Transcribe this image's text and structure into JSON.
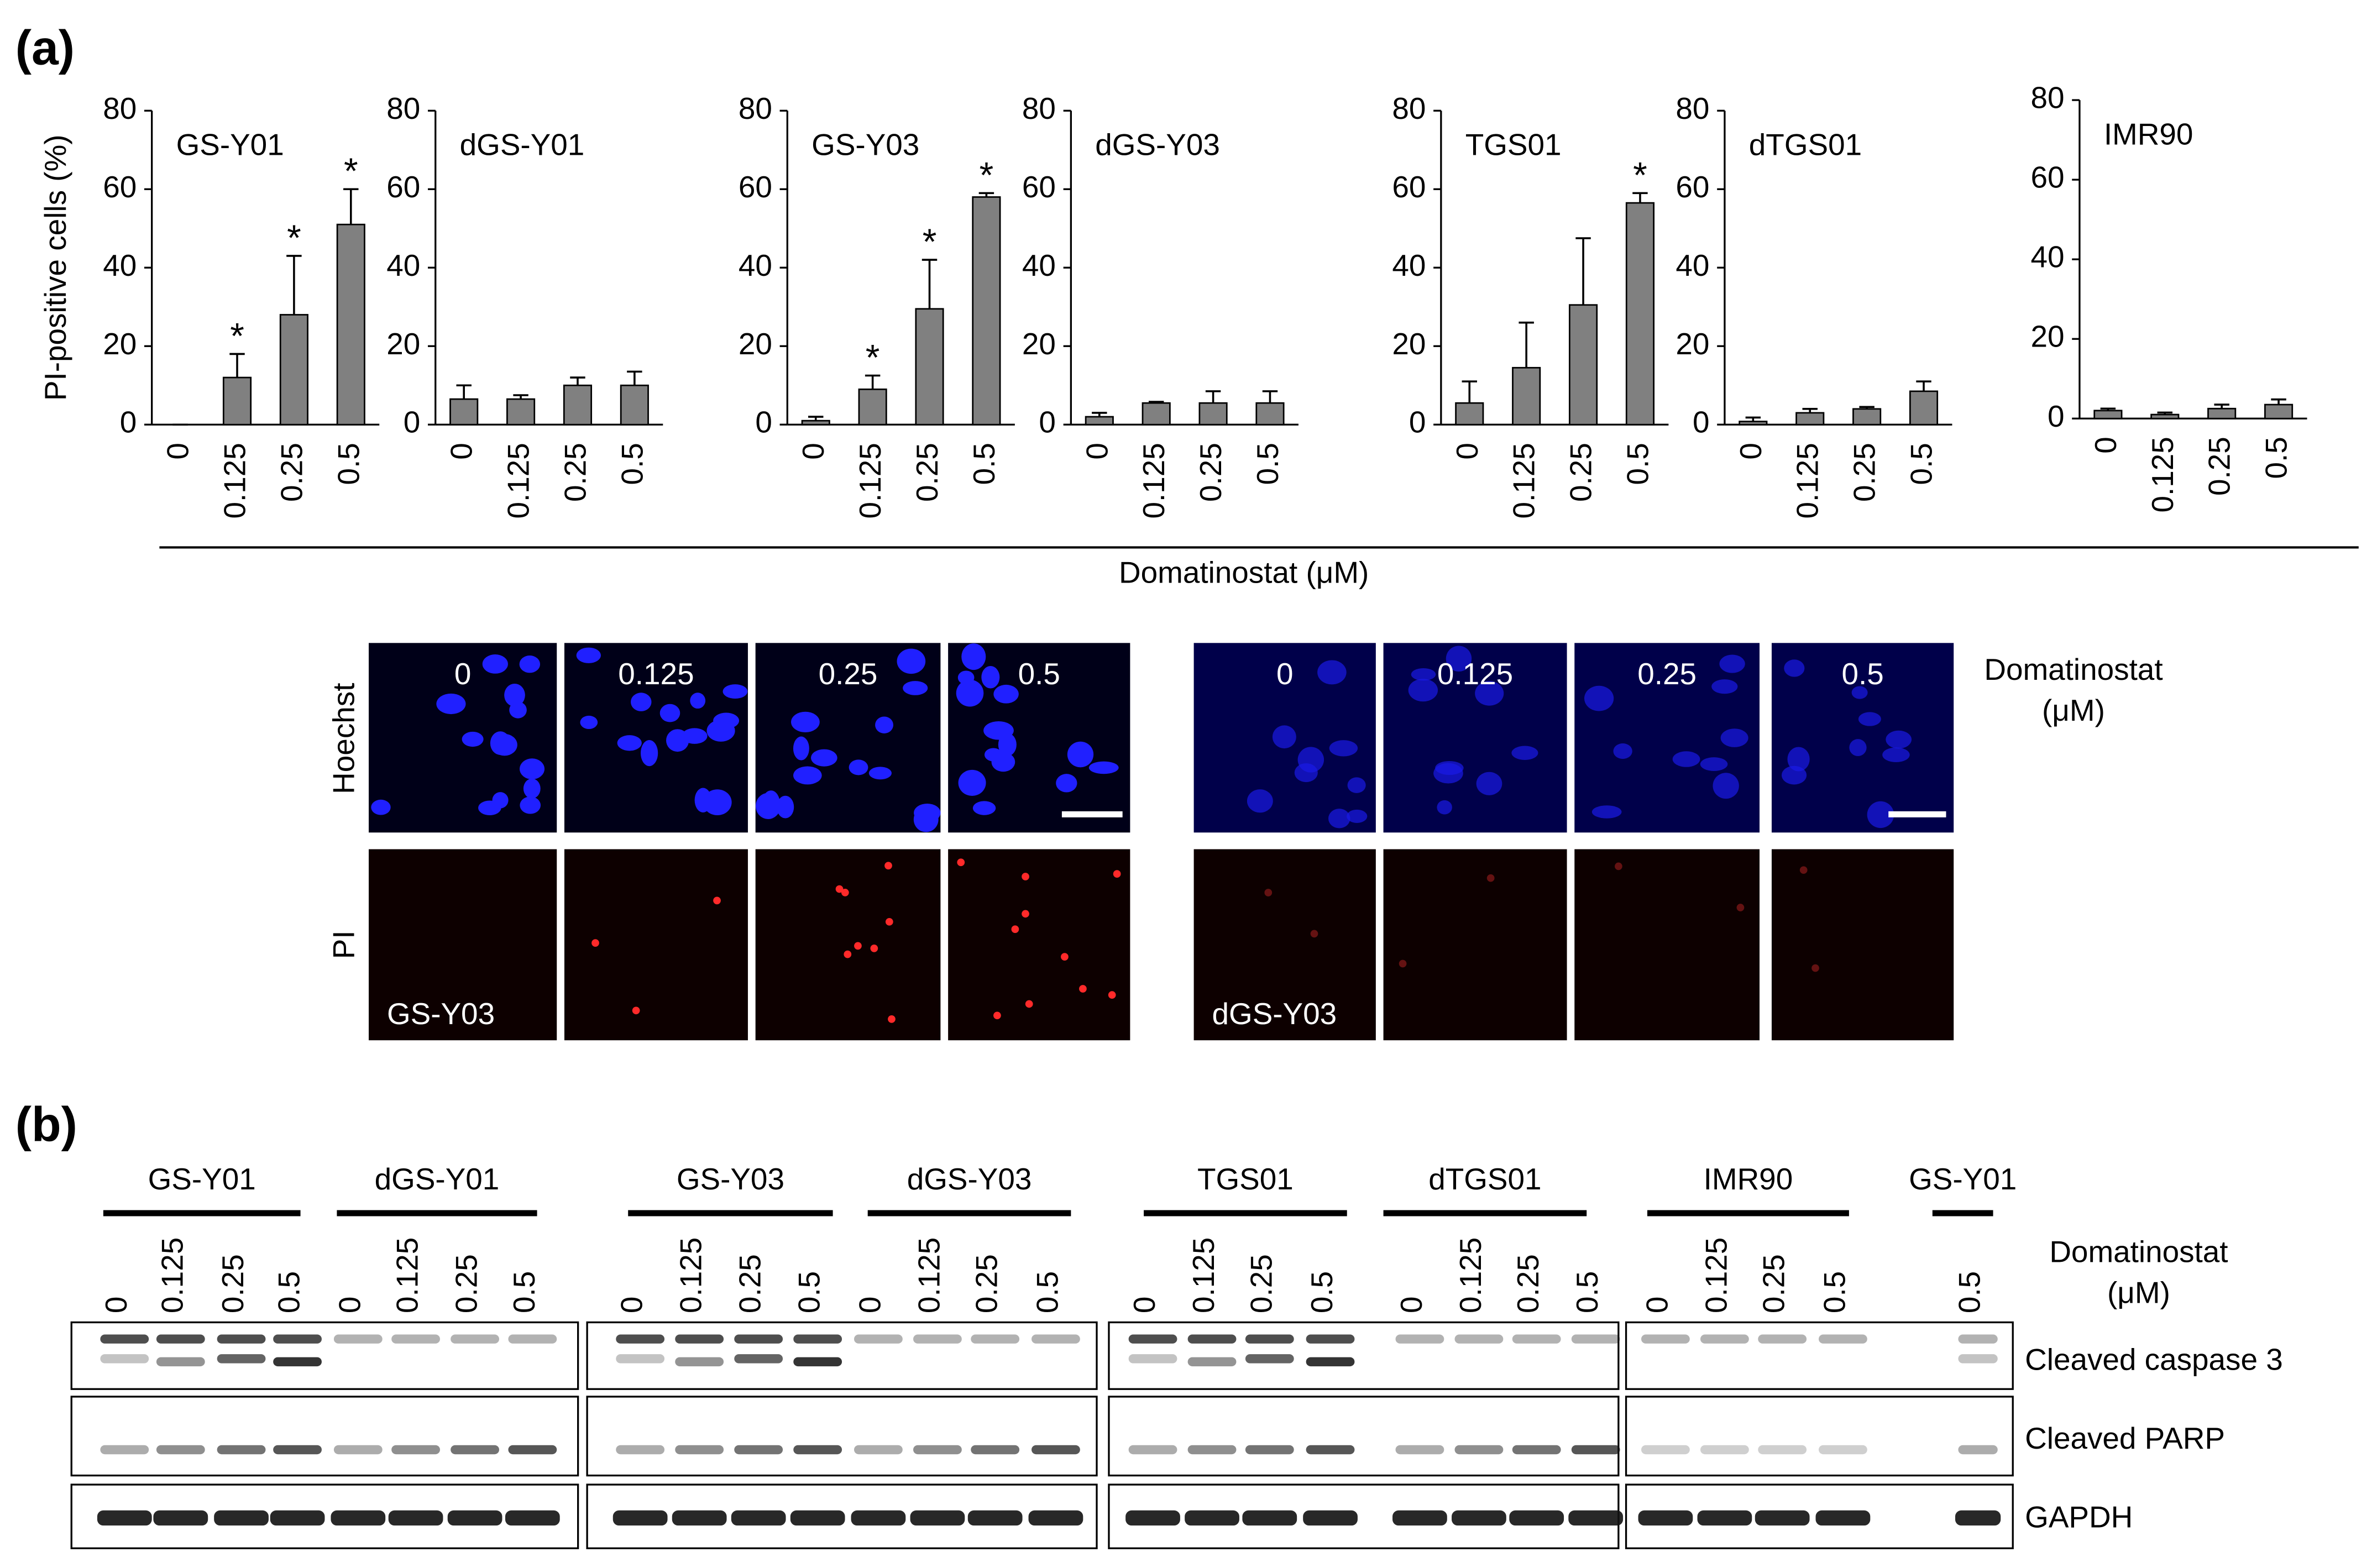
{
  "panel_labels": [
    "(a)",
    "(b)"
  ],
  "panel_a_xlabel": "Domatinostat  (μM)",
  "chart_data": [
    {
      "type": "bar",
      "title": "GS-Y01",
      "ylabel": "PI-positive cells (%)",
      "categories": [
        "0",
        "0.125",
        "0.25",
        "0.5"
      ],
      "values": [
        0,
        12,
        28,
        51
      ],
      "errors": [
        0,
        6,
        15,
        9
      ],
      "markers": [
        null,
        "*",
        "*",
        "*"
      ],
      "color": "#808080",
      "ylim": [
        0,
        80
      ],
      "yticks": [
        0,
        20,
        40,
        60,
        80
      ]
    },
    {
      "type": "bar",
      "title": "dGS-Y01",
      "categories": [
        "0",
        "0.125",
        "0.25",
        "0.5"
      ],
      "values": [
        6.5,
        6.5,
        10,
        10
      ],
      "errors": [
        3.5,
        1,
        2,
        3.5
      ],
      "color": "#808080",
      "ylim": [
        0,
        80
      ],
      "yticks": [
        0,
        20,
        40,
        60,
        80
      ]
    },
    {
      "type": "bar",
      "title": "GS-Y03",
      "categories": [
        "0",
        "0.125",
        "0.25",
        "0.5"
      ],
      "values": [
        1,
        9,
        29.5,
        58
      ],
      "errors": [
        1,
        3.5,
        12.5,
        1
      ],
      "markers": [
        null,
        "*",
        "*",
        "*"
      ],
      "color": "#808080",
      "ylim": [
        0,
        80
      ],
      "yticks": [
        0,
        20,
        40,
        60,
        80
      ]
    },
    {
      "type": "bar",
      "title": "dGS-Y03",
      "categories": [
        "0",
        "0.125",
        "0.25",
        "0.5"
      ],
      "values": [
        2,
        5.5,
        5.5,
        5.5
      ],
      "errors": [
        1,
        0.3,
        3,
        3
      ],
      "color": "#808080",
      "ylim": [
        0,
        80
      ],
      "yticks": [
        0,
        20,
        40,
        60,
        80
      ]
    },
    {
      "type": "bar",
      "title": "TGS01",
      "categories": [
        "0",
        "0.125",
        "0.25",
        "0.5"
      ],
      "values": [
        5.5,
        14.5,
        30.5,
        56.5
      ],
      "errors": [
        5.5,
        11.5,
        17,
        2.5
      ],
      "markers": [
        null,
        null,
        null,
        "*"
      ],
      "color": "#808080",
      "ylim": [
        0,
        80
      ],
      "yticks": [
        0,
        20,
        40,
        60,
        80
      ]
    },
    {
      "type": "bar",
      "title": "dTGS01",
      "categories": [
        "0",
        "0.125",
        "0.25",
        "0.5"
      ],
      "values": [
        0.8,
        3,
        4,
        8.5
      ],
      "errors": [
        1,
        1,
        0.5,
        2.5
      ],
      "color": "#808080",
      "ylim": [
        0,
        80
      ],
      "yticks": [
        0,
        20,
        40,
        60,
        80
      ]
    },
    {
      "type": "bar",
      "title": "IMR90",
      "categories": [
        "0",
        "0.125",
        "0.25",
        "0.5"
      ],
      "values": [
        2,
        1,
        2.5,
        3.5
      ],
      "errors": [
        0.5,
        0.5,
        1,
        1.3
      ],
      "color": "#808080",
      "ylim": [
        0,
        80
      ],
      "yticks": [
        0,
        20,
        40,
        60,
        80
      ]
    }
  ],
  "microscopy": {
    "channels": [
      "Hoechst",
      "PI"
    ],
    "dose_label": [
      "Domatinostat",
      "(μM)"
    ],
    "panels": [
      {
        "cell_line": "GS-Y03",
        "doses": [
          "0",
          "0.125",
          "0.25",
          "0.5"
        ]
      },
      {
        "cell_line": "dGS-Y03",
        "doses": [
          "0",
          "0.125",
          "0.25",
          "0.5"
        ]
      }
    ]
  },
  "blots": {
    "dose_label": [
      "Domatinostat",
      "(μM)"
    ],
    "rows": [
      "Cleaved caspase 3",
      "Cleaved PARP",
      "GAPDH"
    ],
    "groups": [
      {
        "name": "GS-Y01",
        "lanes": [
          "0",
          "0.125",
          "0.25",
          "0.5"
        ]
      },
      {
        "name": "dGS-Y01",
        "lanes": [
          "0",
          "0.125",
          "0.25",
          "0.5"
        ]
      },
      {
        "name": "GS-Y03",
        "lanes": [
          "0",
          "0.125",
          "0.25",
          "0.5"
        ]
      },
      {
        "name": "dGS-Y03",
        "lanes": [
          "0",
          "0.125",
          "0.25",
          "0.5"
        ]
      },
      {
        "name": "TGS01",
        "lanes": [
          "0",
          "0.125",
          "0.25",
          "0.5"
        ]
      },
      {
        "name": "dTGS01",
        "lanes": [
          "0",
          "0.125",
          "0.25",
          "0.5"
        ]
      },
      {
        "name": "IMR90",
        "lanes": [
          "0",
          "0.125",
          "0.25",
          "0.5"
        ]
      },
      {
        "name": "GS-Y01",
        "lanes": [
          "0.5"
        ]
      }
    ]
  }
}
